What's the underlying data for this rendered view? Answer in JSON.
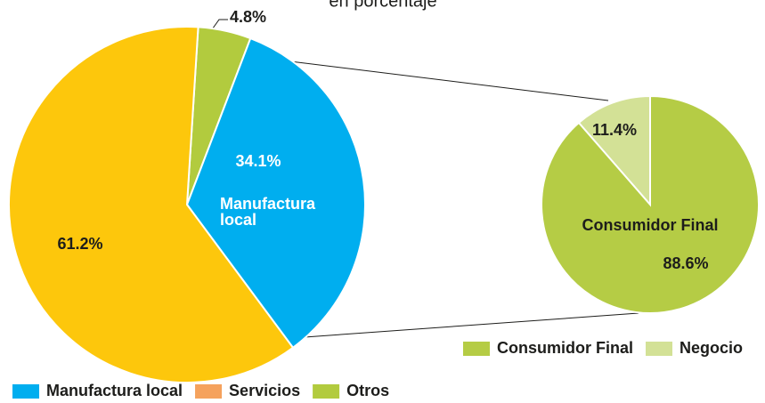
{
  "chart_data": [
    {
      "type": "pie",
      "subtitle": "en porcentaje",
      "categories": [
        "Manufactura local",
        "Servicios",
        "Otros"
      ],
      "values": [
        34.1,
        61.2,
        4.8
      ],
      "value_labels": [
        "34.1%",
        "61.2%",
        "4.8%"
      ],
      "colors": [
        "#00aeef",
        "#fdc70c",
        "#b2cb3e"
      ],
      "legend_colors": [
        "#00aeef",
        "#f5a25d",
        "#b2cb3e"
      ]
    },
    {
      "type": "pie",
      "categories": [
        "Consumidor Final",
        "Negocio"
      ],
      "values": [
        88.6,
        11.4
      ],
      "value_labels": [
        "88.6%",
        "11.4%"
      ],
      "colors": [
        "#b5cc45",
        "#d3e196"
      ],
      "legend_colors": [
        "#b5cc45",
        "#d3e196"
      ]
    }
  ]
}
